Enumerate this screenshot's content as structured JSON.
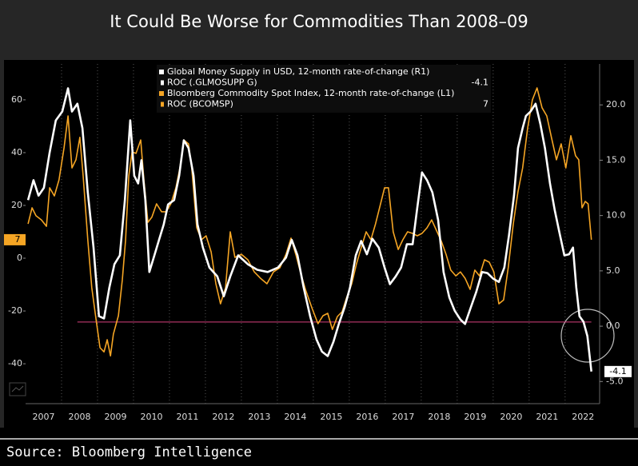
{
  "header": {
    "title": "It Could Be Worse for Commodities Than 2008–09"
  },
  "chart_data": {
    "type": "line",
    "xlim": [
      2007,
      2022.96
    ],
    "xticks": [
      {
        "value": 2007,
        "label": "2007"
      },
      {
        "value": 2008,
        "label": "2008"
      },
      {
        "value": 2009,
        "label": "2009"
      },
      {
        "value": 2010,
        "label": "2010"
      },
      {
        "value": 2011,
        "label": "2011"
      },
      {
        "value": 2012,
        "label": "2012"
      },
      {
        "value": 2013,
        "label": "2013"
      },
      {
        "value": 2014,
        "label": "2014"
      },
      {
        "value": 2015,
        "label": "2015"
      },
      {
        "value": 2016,
        "label": "2016"
      },
      {
        "value": 2017,
        "label": "2017"
      },
      {
        "value": 2018,
        "label": "2018"
      },
      {
        "value": 2019,
        "label": "2019"
      },
      {
        "value": 2020,
        "label": "2020"
      },
      {
        "value": 2021,
        "label": "2021"
      },
      {
        "value": 2022,
        "label": "2022"
      }
    ],
    "ylim": [
      -53.6,
      73.6
    ],
    "yticks": [
      -40,
      -20,
      0,
      20,
      40,
      60
    ],
    "y2lim": [
      -6.64,
      23.7
    ],
    "y2ticks": [
      {
        "value": -5,
        "label": "-5.0"
      },
      {
        "value": 0,
        "label": "0.0"
      },
      {
        "value": 5,
        "label": "5.0"
      },
      {
        "value": 10,
        "label": "10.0"
      },
      {
        "value": 15,
        "label": "15.0"
      },
      {
        "value": 20,
        "label": "20.0"
      }
    ],
    "grid": true,
    "legend": "upper center",
    "series": [
      {
        "name": "Global Money Supply in USD, 12-month rate-of-change (R1)",
        "legend_sub": "ROC (.GLMOSUPP G)",
        "last": -4.1,
        "color": "#ffffff",
        "axis": "y2",
        "x": [
          2007.07,
          2007.22,
          2007.36,
          2007.51,
          2007.67,
          2007.84,
          2008.02,
          2008.18,
          2008.29,
          2008.44,
          2008.58,
          2008.73,
          2008.89,
          2009.04,
          2009.18,
          2009.33,
          2009.47,
          2009.62,
          2009.76,
          2009.91,
          2010.02,
          2010.13,
          2010.22,
          2010.33,
          2010.44,
          2010.58,
          2010.71,
          2010.84,
          2010.96,
          2011.13,
          2011.27,
          2011.4,
          2011.53,
          2011.67,
          2011.78,
          2011.93,
          2012.11,
          2012.33,
          2012.51,
          2012.69,
          2012.91,
          2013.18,
          2013.44,
          2013.73,
          2014.02,
          2014.24,
          2014.4,
          2014.56,
          2014.73,
          2014.91,
          2015.09,
          2015.24,
          2015.4,
          2015.56,
          2015.71,
          2015.87,
          2016.02,
          2016.18,
          2016.33,
          2016.49,
          2016.64,
          2016.82,
          2016.98,
          2017.13,
          2017.29,
          2017.44,
          2017.6,
          2017.76,
          2017.89,
          2018.02,
          2018.16,
          2018.31,
          2018.47,
          2018.62,
          2018.78,
          2018.93,
          2019.09,
          2019.22,
          2019.38,
          2019.53,
          2019.69,
          2019.84,
          2020.0,
          2020.16,
          2020.31,
          2020.44,
          2020.58,
          2020.69,
          2020.82,
          2020.91,
          2021.04,
          2021.18,
          2021.31,
          2021.44,
          2021.58,
          2021.71,
          2021.84,
          2021.98,
          2022.11,
          2022.22,
          2022.31,
          2022.4,
          2022.51,
          2022.62,
          2022.73
        ],
        "values": [
          11.4,
          13.2,
          11.8,
          12.5,
          15.7,
          18.6,
          19.4,
          21.5,
          19.4,
          20.1,
          17.9,
          12.1,
          7.1,
          0.9,
          0.7,
          3.5,
          5.6,
          6.4,
          11.4,
          18.6,
          13.6,
          12.9,
          15.0,
          11.4,
          4.9,
          6.4,
          7.8,
          9.2,
          11.0,
          11.4,
          13.6,
          16.8,
          16.1,
          13.6,
          9.2,
          7.1,
          5.3,
          4.5,
          2.7,
          4.5,
          6.4,
          5.6,
          5.1,
          4.9,
          5.3,
          6.2,
          7.8,
          6.4,
          3.5,
          0.9,
          -1.2,
          -2.3,
          -2.7,
          -1.4,
          0.2,
          1.7,
          3.5,
          6.4,
          7.7,
          6.5,
          7.9,
          7.1,
          5.3,
          3.8,
          4.5,
          5.3,
          7.4,
          7.4,
          10.7,
          13.9,
          13.2,
          12.1,
          9.6,
          4.9,
          2.6,
          1.4,
          0.6,
          0.2,
          1.7,
          3.1,
          4.9,
          4.8,
          4.3,
          4.0,
          5.3,
          8.2,
          11.8,
          16.1,
          17.9,
          19.0,
          19.4,
          20.1,
          18.3,
          16.1,
          12.9,
          10.5,
          8.5,
          6.4,
          6.5,
          7.1,
          3.5,
          0.9,
          0.4,
          -0.9,
          -4.1
        ]
      },
      {
        "name": "Bloomberg Commodity Spot Index, 12-month rate-of-change (L1)",
        "legend_sub": "ROC (BCOMSP)",
        "last": 7,
        "color": "#f5a524",
        "axis": "y",
        "x": [
          2007.07,
          2007.18,
          2007.29,
          2007.44,
          2007.58,
          2007.67,
          2007.8,
          2007.93,
          2008.07,
          2008.18,
          2008.29,
          2008.4,
          2008.51,
          2008.6,
          2008.73,
          2008.84,
          2008.96,
          2009.07,
          2009.18,
          2009.27,
          2009.36,
          2009.44,
          2009.58,
          2009.69,
          2009.78,
          2009.87,
          2009.96,
          2010.07,
          2010.2,
          2010.29,
          2010.4,
          2010.51,
          2010.64,
          2010.78,
          2010.91,
          2011.04,
          2011.18,
          2011.29,
          2011.4,
          2011.53,
          2011.62,
          2011.76,
          2011.89,
          2012.02,
          2012.16,
          2012.29,
          2012.42,
          2012.56,
          2012.69,
          2012.82,
          2013.0,
          2013.18,
          2013.36,
          2013.53,
          2013.71,
          2013.89,
          2014.07,
          2014.24,
          2014.38,
          2014.51,
          2014.64,
          2014.78,
          2014.96,
          2015.13,
          2015.27,
          2015.4,
          2015.53,
          2015.67,
          2015.8,
          2015.93,
          2016.07,
          2016.2,
          2016.33,
          2016.47,
          2016.6,
          2016.73,
          2016.87,
          2016.98,
          2017.09,
          2017.22,
          2017.36,
          2017.49,
          2017.62,
          2017.76,
          2017.89,
          2018.02,
          2018.16,
          2018.29,
          2018.42,
          2018.56,
          2018.69,
          2018.82,
          2018.96,
          2019.09,
          2019.22,
          2019.36,
          2019.49,
          2019.62,
          2019.76,
          2019.89,
          2020.02,
          2020.16,
          2020.29,
          2020.42,
          2020.56,
          2020.69,
          2020.82,
          2020.96,
          2021.09,
          2021.22,
          2021.36,
          2021.49,
          2021.62,
          2021.76,
          2021.89,
          2022.02,
          2022.16,
          2022.29,
          2022.38,
          2022.47,
          2022.56,
          2022.64,
          2022.73
        ],
        "values": [
          13.0,
          19.1,
          16.1,
          14.5,
          12.1,
          26.7,
          23.6,
          29.7,
          41.8,
          53.9,
          34.2,
          37.3,
          45.8,
          31.2,
          7.0,
          -11.2,
          -23.3,
          -33.9,
          -35.5,
          -30.9,
          -37.0,
          -28.8,
          -21.8,
          -8.2,
          7.0,
          31.2,
          40.3,
          39.7,
          44.8,
          29.7,
          13.6,
          15.5,
          20.6,
          17.6,
          17.6,
          20.6,
          26.7,
          34.2,
          44.8,
          43.3,
          34.2,
          11.5,
          7.0,
          8.5,
          2.4,
          -9.7,
          -17.3,
          -11.2,
          10.0,
          0.3,
          1.5,
          -0.6,
          -5.2,
          -7.6,
          -9.7,
          -5.2,
          -3.6,
          1.5,
          7.6,
          1.5,
          -5.2,
          -11.8,
          -18.8,
          -24.8,
          -21.8,
          -20.9,
          -27.0,
          -22.1,
          -20.3,
          -14.8,
          -9.7,
          -2.1,
          3.9,
          10.0,
          7.0,
          13.0,
          20.6,
          26.7,
          26.7,
          10.0,
          3.3,
          7.0,
          10.0,
          9.4,
          8.5,
          9.4,
          11.5,
          14.5,
          10.6,
          6.4,
          1.5,
          -4.5,
          -6.7,
          -5.2,
          -7.6,
          -11.8,
          -4.5,
          -6.7,
          -0.6,
          -1.5,
          -5.2,
          -17.3,
          -15.8,
          -3.6,
          13.0,
          25.2,
          34.2,
          49.4,
          60.0,
          64.5,
          57.0,
          53.9,
          45.8,
          37.3,
          43.3,
          34.2,
          46.4,
          38.8,
          37.3,
          19.1,
          21.5,
          20.6,
          7.0
        ]
      }
    ],
    "reference_line": {
      "value": -24.2,
      "x": [
        2008.44,
        2022.73
      ],
      "color": "#d8407e"
    }
  },
  "footer": {
    "source": "Source: Bloomberg Intelligence"
  }
}
